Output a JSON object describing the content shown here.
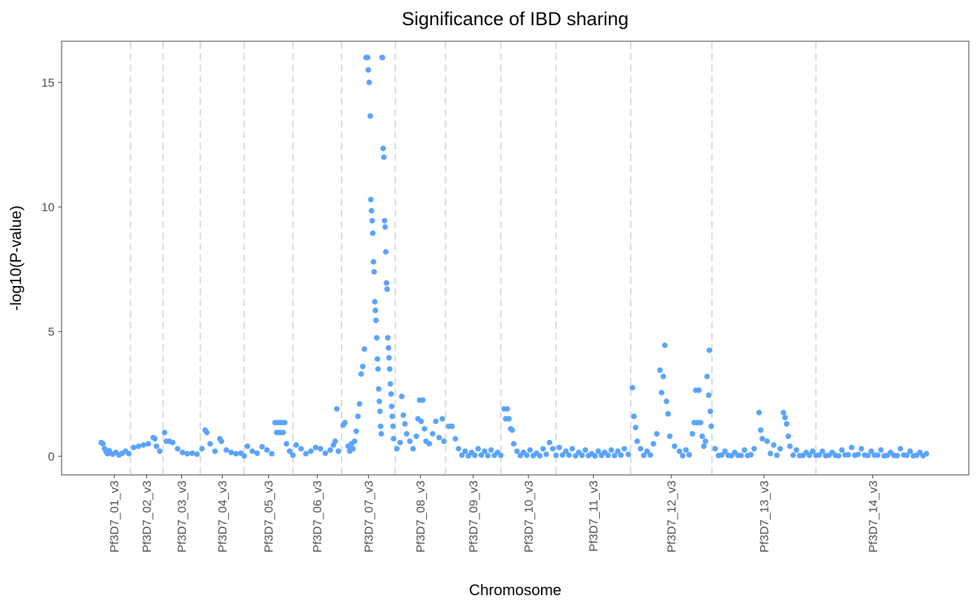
{
  "chart_data": {
    "type": "scatter",
    "title": "Significance of IBD sharing",
    "xlabel": "Chromosome",
    "ylabel": "-log10(P-value)",
    "ylim": [
      -0.75,
      16.65
    ],
    "yticks": [
      0,
      5,
      10,
      15
    ],
    "grid": false,
    "legend": "none",
    "point_color": "#5aa4ff",
    "separator_color": "#d9d9d9",
    "chromosomes": [
      {
        "name": "Pf3D7_01_v3",
        "start": 0.0,
        "end": 1.0
      },
      {
        "name": "Pf3D7_02_v3",
        "start": 1.0,
        "end": 2.0
      },
      {
        "name": "Pf3D7_03_v3",
        "start": 2.0,
        "end": 3.15
      },
      {
        "name": "Pf3D7_04_v3",
        "start": 3.15,
        "end": 4.5
      },
      {
        "name": "Pf3D7_05_v3",
        "start": 4.5,
        "end": 6.0
      },
      {
        "name": "Pf3D7_06_v3",
        "start": 6.0,
        "end": 7.5
      },
      {
        "name": "Pf3D7_07_v3",
        "start": 7.5,
        "end": 9.15
      },
      {
        "name": "Pf3D7_08_v3",
        "start": 9.15,
        "end": 10.7
      },
      {
        "name": "Pf3D7_09_v3",
        "start": 10.7,
        "end": 12.4
      },
      {
        "name": "Pf3D7_10_v3",
        "start": 12.4,
        "end": 14.1
      },
      {
        "name": "Pf3D7_11_v3",
        "start": 14.1,
        "end": 16.4
      },
      {
        "name": "Pf3D7_12_v3",
        "start": 16.4,
        "end": 18.9
      },
      {
        "name": "Pf3D7_13_v3",
        "start": 18.9,
        "end": 22.1
      },
      {
        "name": "Pf3D7_14_v3",
        "start": 22.1,
        "end": 25.6
      }
    ],
    "series": [
      {
        "values": [
          [
            0.1,
            0.55
          ],
          [
            0.15,
            0.5
          ],
          [
            0.2,
            0.3
          ],
          [
            0.25,
            0.18
          ],
          [
            0.3,
            0.1
          ],
          [
            0.35,
            0.22
          ],
          [
            0.45,
            0.08
          ],
          [
            0.55,
            0.15
          ],
          [
            0.65,
            0.05
          ],
          [
            0.75,
            0.12
          ],
          [
            0.85,
            0.2
          ],
          [
            0.95,
            0.1
          ],
          [
            1.1,
            0.35
          ],
          [
            1.25,
            0.4
          ],
          [
            1.4,
            0.45
          ],
          [
            1.55,
            0.5
          ],
          [
            1.7,
            0.75
          ],
          [
            1.75,
            0.7
          ],
          [
            1.8,
            0.4
          ],
          [
            1.9,
            0.2
          ],
          [
            2.05,
            0.95
          ],
          [
            2.1,
            0.6
          ],
          [
            2.2,
            0.6
          ],
          [
            2.3,
            0.55
          ],
          [
            2.45,
            0.3
          ],
          [
            2.6,
            0.15
          ],
          [
            2.75,
            0.1
          ],
          [
            2.9,
            0.12
          ],
          [
            3.05,
            0.08
          ],
          [
            3.2,
            0.3
          ],
          [
            3.3,
            1.05
          ],
          [
            3.35,
            0.95
          ],
          [
            3.45,
            0.5
          ],
          [
            3.6,
            0.2
          ],
          [
            3.75,
            0.7
          ],
          [
            3.8,
            0.6
          ],
          [
            3.95,
            0.25
          ],
          [
            4.1,
            0.15
          ],
          [
            4.25,
            0.1
          ],
          [
            4.4,
            0.12
          ],
          [
            4.6,
            0.4
          ],
          [
            4.75,
            0.2
          ],
          [
            4.9,
            0.12
          ],
          [
            5.05,
            0.38
          ],
          [
            5.2,
            0.25
          ],
          [
            5.35,
            0.1
          ],
          [
            5.45,
            1.35
          ],
          [
            5.5,
            0.95
          ],
          [
            5.55,
            1.35
          ],
          [
            5.6,
            0.95
          ],
          [
            5.65,
            1.35
          ],
          [
            5.7,
            0.95
          ],
          [
            5.75,
            1.35
          ],
          [
            5.8,
            0.5
          ],
          [
            5.9,
            0.2
          ],
          [
            6.1,
            0.45
          ],
          [
            6.25,
            0.3
          ],
          [
            6.4,
            0.1
          ],
          [
            6.55,
            0.2
          ],
          [
            6.7,
            0.35
          ],
          [
            6.85,
            0.3
          ],
          [
            7.0,
            0.12
          ],
          [
            7.15,
            0.25
          ],
          [
            7.25,
            0.45
          ],
          [
            7.3,
            0.6
          ],
          [
            7.35,
            1.9
          ],
          [
            7.4,
            0.2
          ],
          [
            7.55,
            1.25
          ],
          [
            7.6,
            1.35
          ],
          [
            7.7,
            0.4
          ],
          [
            7.75,
            0.2
          ],
          [
            7.8,
            0.5
          ],
          [
            7.85,
            0.3
          ],
          [
            7.9,
            0.6
          ],
          [
            7.95,
            1.0
          ],
          [
            8.0,
            1.6
          ],
          [
            8.05,
            2.1
          ],
          [
            8.1,
            3.3
          ],
          [
            8.15,
            3.6
          ],
          [
            8.2,
            4.3
          ],
          [
            8.25,
            16.0
          ],
          [
            8.3,
            16.0
          ],
          [
            8.32,
            15.5
          ],
          [
            8.35,
            15.0
          ],
          [
            8.38,
            13.65
          ],
          [
            8.4,
            10.3
          ],
          [
            8.42,
            9.85
          ],
          [
            8.44,
            9.45
          ],
          [
            8.46,
            8.95
          ],
          [
            8.48,
            7.8
          ],
          [
            8.5,
            7.4
          ],
          [
            8.52,
            6.2
          ],
          [
            8.54,
            5.85
          ],
          [
            8.56,
            5.45
          ],
          [
            8.58,
            4.75
          ],
          [
            8.6,
            3.9
          ],
          [
            8.62,
            3.5
          ],
          [
            8.64,
            2.7
          ],
          [
            8.66,
            2.2
          ],
          [
            8.68,
            1.8
          ],
          [
            8.7,
            1.2
          ],
          [
            8.72,
            0.9
          ],
          [
            8.74,
            16.0
          ],
          [
            8.76,
            16.0
          ],
          [
            8.78,
            12.35
          ],
          [
            8.8,
            12.0
          ],
          [
            8.82,
            9.45
          ],
          [
            8.84,
            9.2
          ],
          [
            8.86,
            8.2
          ],
          [
            8.88,
            6.95
          ],
          [
            8.9,
            6.7
          ],
          [
            8.92,
            4.75
          ],
          [
            8.94,
            4.35
          ],
          [
            8.96,
            3.95
          ],
          [
            8.98,
            3.5
          ],
          [
            9.0,
            2.9
          ],
          [
            9.02,
            2.5
          ],
          [
            9.04,
            2.0
          ],
          [
            9.06,
            1.6
          ],
          [
            9.08,
            1.2
          ],
          [
            9.1,
            0.7
          ],
          [
            9.2,
            0.3
          ],
          [
            9.3,
            0.55
          ],
          [
            9.35,
            2.4
          ],
          [
            9.4,
            1.65
          ],
          [
            9.45,
            1.3
          ],
          [
            9.5,
            0.9
          ],
          [
            9.6,
            0.6
          ],
          [
            9.7,
            0.3
          ],
          [
            9.8,
            0.8
          ],
          [
            9.85,
            1.5
          ],
          [
            9.9,
            2.25
          ],
          [
            9.95,
            1.4
          ],
          [
            10.0,
            2.25
          ],
          [
            10.05,
            1.1
          ],
          [
            10.1,
            0.6
          ],
          [
            10.2,
            0.5
          ],
          [
            10.3,
            0.9
          ],
          [
            10.4,
            1.4
          ],
          [
            10.5,
            0.75
          ],
          [
            10.6,
            1.5
          ],
          [
            10.65,
            0.6
          ],
          [
            10.8,
            1.2
          ],
          [
            10.9,
            1.2
          ],
          [
            11.0,
            0.7
          ],
          [
            11.1,
            0.3
          ],
          [
            11.3,
            0.2
          ],
          [
            11.5,
            0.15
          ],
          [
            11.7,
            0.3
          ],
          [
            11.9,
            0.2
          ],
          [
            12.1,
            0.25
          ],
          [
            12.3,
            0.15
          ],
          [
            12.5,
            1.9
          ],
          [
            12.55,
            1.5
          ],
          [
            12.6,
            1.9
          ],
          [
            12.65,
            1.5
          ],
          [
            12.7,
            1.1
          ],
          [
            12.75,
            1.05
          ],
          [
            12.8,
            0.5
          ],
          [
            12.9,
            0.2
          ],
          [
            13.1,
            0.15
          ],
          [
            13.3,
            0.25
          ],
          [
            13.5,
            0.12
          ],
          [
            13.7,
            0.3
          ],
          [
            13.9,
            0.55
          ],
          [
            14.0,
            0.3
          ],
          [
            14.2,
            0.35
          ],
          [
            14.4,
            0.2
          ],
          [
            14.6,
            0.3
          ],
          [
            14.8,
            0.15
          ],
          [
            15.0,
            0.25
          ],
          [
            15.2,
            0.1
          ],
          [
            15.4,
            0.2
          ],
          [
            15.6,
            0.15
          ],
          [
            15.8,
            0.25
          ],
          [
            16.0,
            0.2
          ],
          [
            16.2,
            0.3
          ],
          [
            16.45,
            2.75
          ],
          [
            16.5,
            1.6
          ],
          [
            16.55,
            1.15
          ],
          [
            16.6,
            0.6
          ],
          [
            16.7,
            0.3
          ],
          [
            16.9,
            0.2
          ],
          [
            17.1,
            0.5
          ],
          [
            17.2,
            0.9
          ],
          [
            17.3,
            3.45
          ],
          [
            17.35,
            2.55
          ],
          [
            17.4,
            3.2
          ],
          [
            17.45,
            4.45
          ],
          [
            17.5,
            2.2
          ],
          [
            17.55,
            1.7
          ],
          [
            17.6,
            0.8
          ],
          [
            17.75,
            0.4
          ],
          [
            17.9,
            0.2
          ],
          [
            18.1,
            0.25
          ],
          [
            18.3,
            0.9
          ],
          [
            18.35,
            1.35
          ],
          [
            18.4,
            2.65
          ],
          [
            18.45,
            1.35
          ],
          [
            18.5,
            2.65
          ],
          [
            18.55,
            1.35
          ],
          [
            18.6,
            0.8
          ],
          [
            18.65,
            0.4
          ],
          [
            18.7,
            0.6
          ],
          [
            18.75,
            3.2
          ],
          [
            18.8,
            2.45
          ],
          [
            18.82,
            4.25
          ],
          [
            18.85,
            1.8
          ],
          [
            18.88,
            1.2
          ],
          [
            19.0,
            0.3
          ],
          [
            19.3,
            0.2
          ],
          [
            19.6,
            0.15
          ],
          [
            19.9,
            0.25
          ],
          [
            20.2,
            0.3
          ],
          [
            20.35,
            1.75
          ],
          [
            20.4,
            1.05
          ],
          [
            20.45,
            0.7
          ],
          [
            20.6,
            0.6
          ],
          [
            20.8,
            0.45
          ],
          [
            21.0,
            0.3
          ],
          [
            21.1,
            1.75
          ],
          [
            21.15,
            1.55
          ],
          [
            21.2,
            1.3
          ],
          [
            21.25,
            0.8
          ],
          [
            21.3,
            0.4
          ],
          [
            21.5,
            0.25
          ],
          [
            21.8,
            0.15
          ],
          [
            22.0,
            0.2
          ],
          [
            22.3,
            0.2
          ],
          [
            22.6,
            0.15
          ],
          [
            22.9,
            0.25
          ],
          [
            23.2,
            0.35
          ],
          [
            23.5,
            0.3
          ],
          [
            23.8,
            0.2
          ],
          [
            24.1,
            0.25
          ],
          [
            24.4,
            0.15
          ],
          [
            24.7,
            0.3
          ],
          [
            25.0,
            0.2
          ],
          [
            25.3,
            0.15
          ],
          [
            25.5,
            0.1
          ]
        ]
      }
    ]
  }
}
